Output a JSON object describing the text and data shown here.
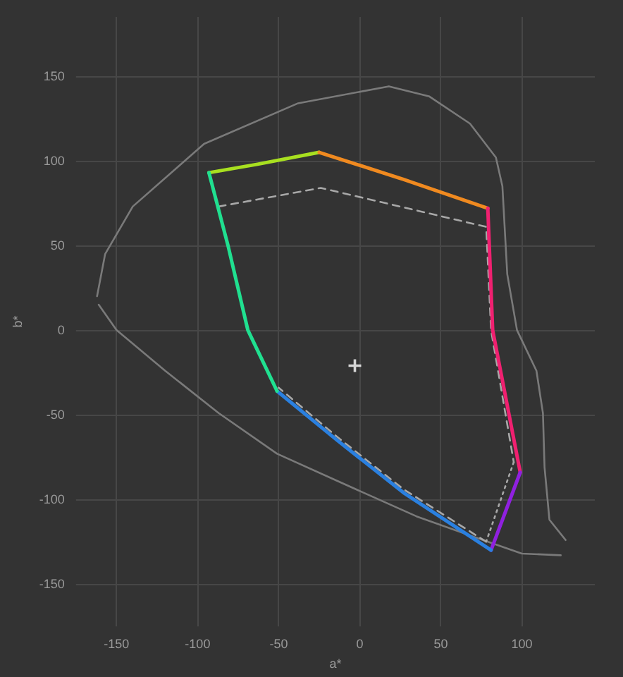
{
  "chart_data": {
    "type": "line",
    "xlabel": "a*",
    "ylabel": "b*",
    "xlim": [
      -175,
      145
    ],
    "ylim": [
      -175,
      185
    ],
    "xticks": [
      -150,
      -100,
      -50,
      0,
      50,
      100
    ],
    "yticks": [
      -150,
      -100,
      -50,
      0,
      50,
      100,
      150
    ],
    "grid": true,
    "marker": "none",
    "series": [
      {
        "color": "#7a7a7a",
        "line_style": "solid",
        "x": [
          -162,
          -157,
          -140,
          -96,
          -38,
          18,
          43,
          68,
          84,
          88,
          91,
          97,
          109,
          113,
          114,
          117,
          127
        ],
        "values": [
          20,
          45,
          73,
          110,
          134,
          144,
          138,
          122,
          102,
          85,
          33,
          0,
          -24,
          -49,
          -81,
          -112,
          -124
        ]
      },
      {
        "color": "#7a7a7a",
        "line_style": "solid",
        "x": [
          -161,
          -150,
          -120,
          -87,
          -51,
          -14,
          35,
          76,
          100,
          124
        ],
        "values": [
          15,
          0,
          -24,
          -49,
          -73,
          -89,
          -110,
          -124,
          -132,
          -133
        ]
      },
      {
        "color": "#a8a8a8",
        "line_style": "dashed",
        "x": [
          -87,
          -24,
          78,
          81,
          95
        ],
        "values": [
          73,
          84,
          61,
          0,
          -78
        ]
      },
      {
        "color": "#a8a8a8",
        "line_style": "dotted",
        "x": [
          95,
          78
        ],
        "values": [
          -78,
          -125
        ]
      },
      {
        "color": "#a8a8a8",
        "line_style": "dashed",
        "x": [
          78,
          27,
          -14,
          -50
        ],
        "values": [
          -125,
          -94,
          -63,
          -34
        ]
      },
      {
        "color": "#a8e020",
        "line_style": "solid",
        "x": [
          -93,
          -63,
          -25
        ],
        "values": [
          93,
          98,
          105
        ]
      },
      {
        "color": "#f08a20",
        "line_style": "solid",
        "x": [
          -25,
          27,
          79
        ],
        "values": [
          105,
          89,
          72
        ]
      },
      {
        "color": "#f02070",
        "line_style": "solid",
        "x": [
          79,
          82,
          99
        ],
        "values": [
          72,
          0,
          -84
        ]
      },
      {
        "color": "#9020e0",
        "line_style": "solid",
        "x": [
          99,
          81
        ],
        "values": [
          -84,
          -130
        ]
      },
      {
        "color": "#2a80e0",
        "line_style": "solid",
        "x": [
          81,
          27,
          -14,
          -51
        ],
        "values": [
          -130,
          -96,
          -65,
          -36
        ]
      },
      {
        "color": "#20e090",
        "line_style": "solid",
        "x": [
          -51,
          -69,
          -81,
          -93
        ],
        "values": [
          -36,
          0,
          49,
          93
        ]
      },
      {
        "type": "scatter",
        "marker": "cross",
        "color": "#ffffff",
        "x": [
          -3
        ],
        "values": [
          -21
        ]
      }
    ]
  }
}
